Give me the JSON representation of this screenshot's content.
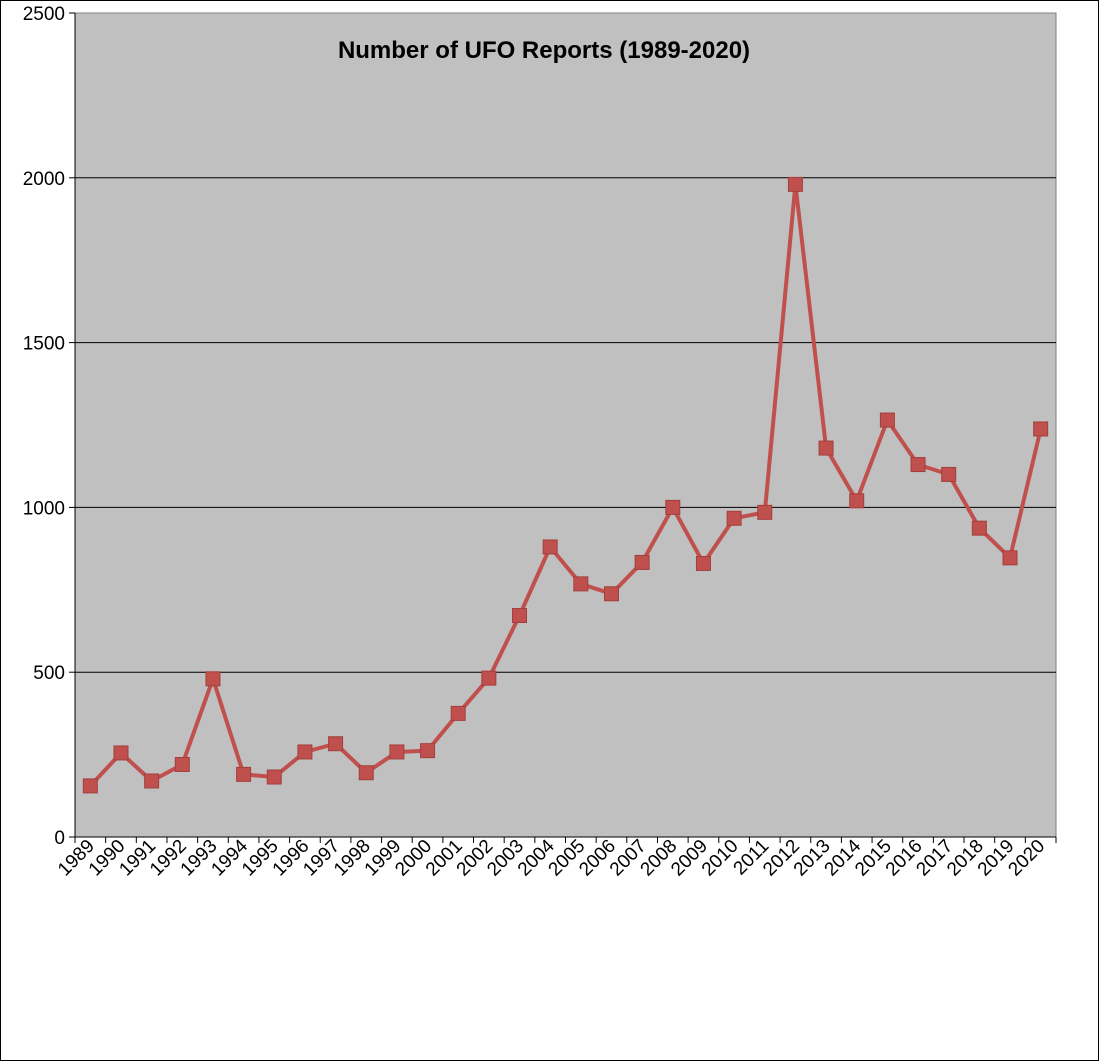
{
  "chart_data": {
    "type": "line",
    "title": "Number of UFO Reports (1989-2020)",
    "xlabel": "",
    "ylabel": "",
    "ylim": [
      0,
      2500
    ],
    "yticks": [
      0,
      500,
      1000,
      1500,
      2000,
      2500
    ],
    "grid": true,
    "legend": "none",
    "colors": {
      "plot_bg": "#c0c0c0",
      "line": "#c0504d",
      "grid": "#000000"
    },
    "categories": [
      "1989",
      "1990",
      "1991",
      "1992",
      "1993",
      "1994",
      "1995",
      "1996",
      "1997",
      "1998",
      "1999",
      "2000",
      "2001",
      "2002",
      "2003",
      "2004",
      "2005",
      "2006",
      "2007",
      "2008",
      "2009",
      "2010",
      "2011",
      "2012",
      "2013",
      "2014",
      "2015",
      "2016",
      "2017",
      "2018",
      "2019",
      "2020"
    ],
    "series": [
      {
        "values": [
          155,
          255,
          170,
          220,
          480,
          190,
          182,
          258,
          283,
          195,
          258,
          262,
          375,
          482,
          672,
          880,
          768,
          738,
          833,
          1000,
          830,
          967,
          985,
          1980,
          1180,
          1020,
          1265,
          1130,
          1100,
          937,
          847,
          1238
        ]
      }
    ]
  }
}
